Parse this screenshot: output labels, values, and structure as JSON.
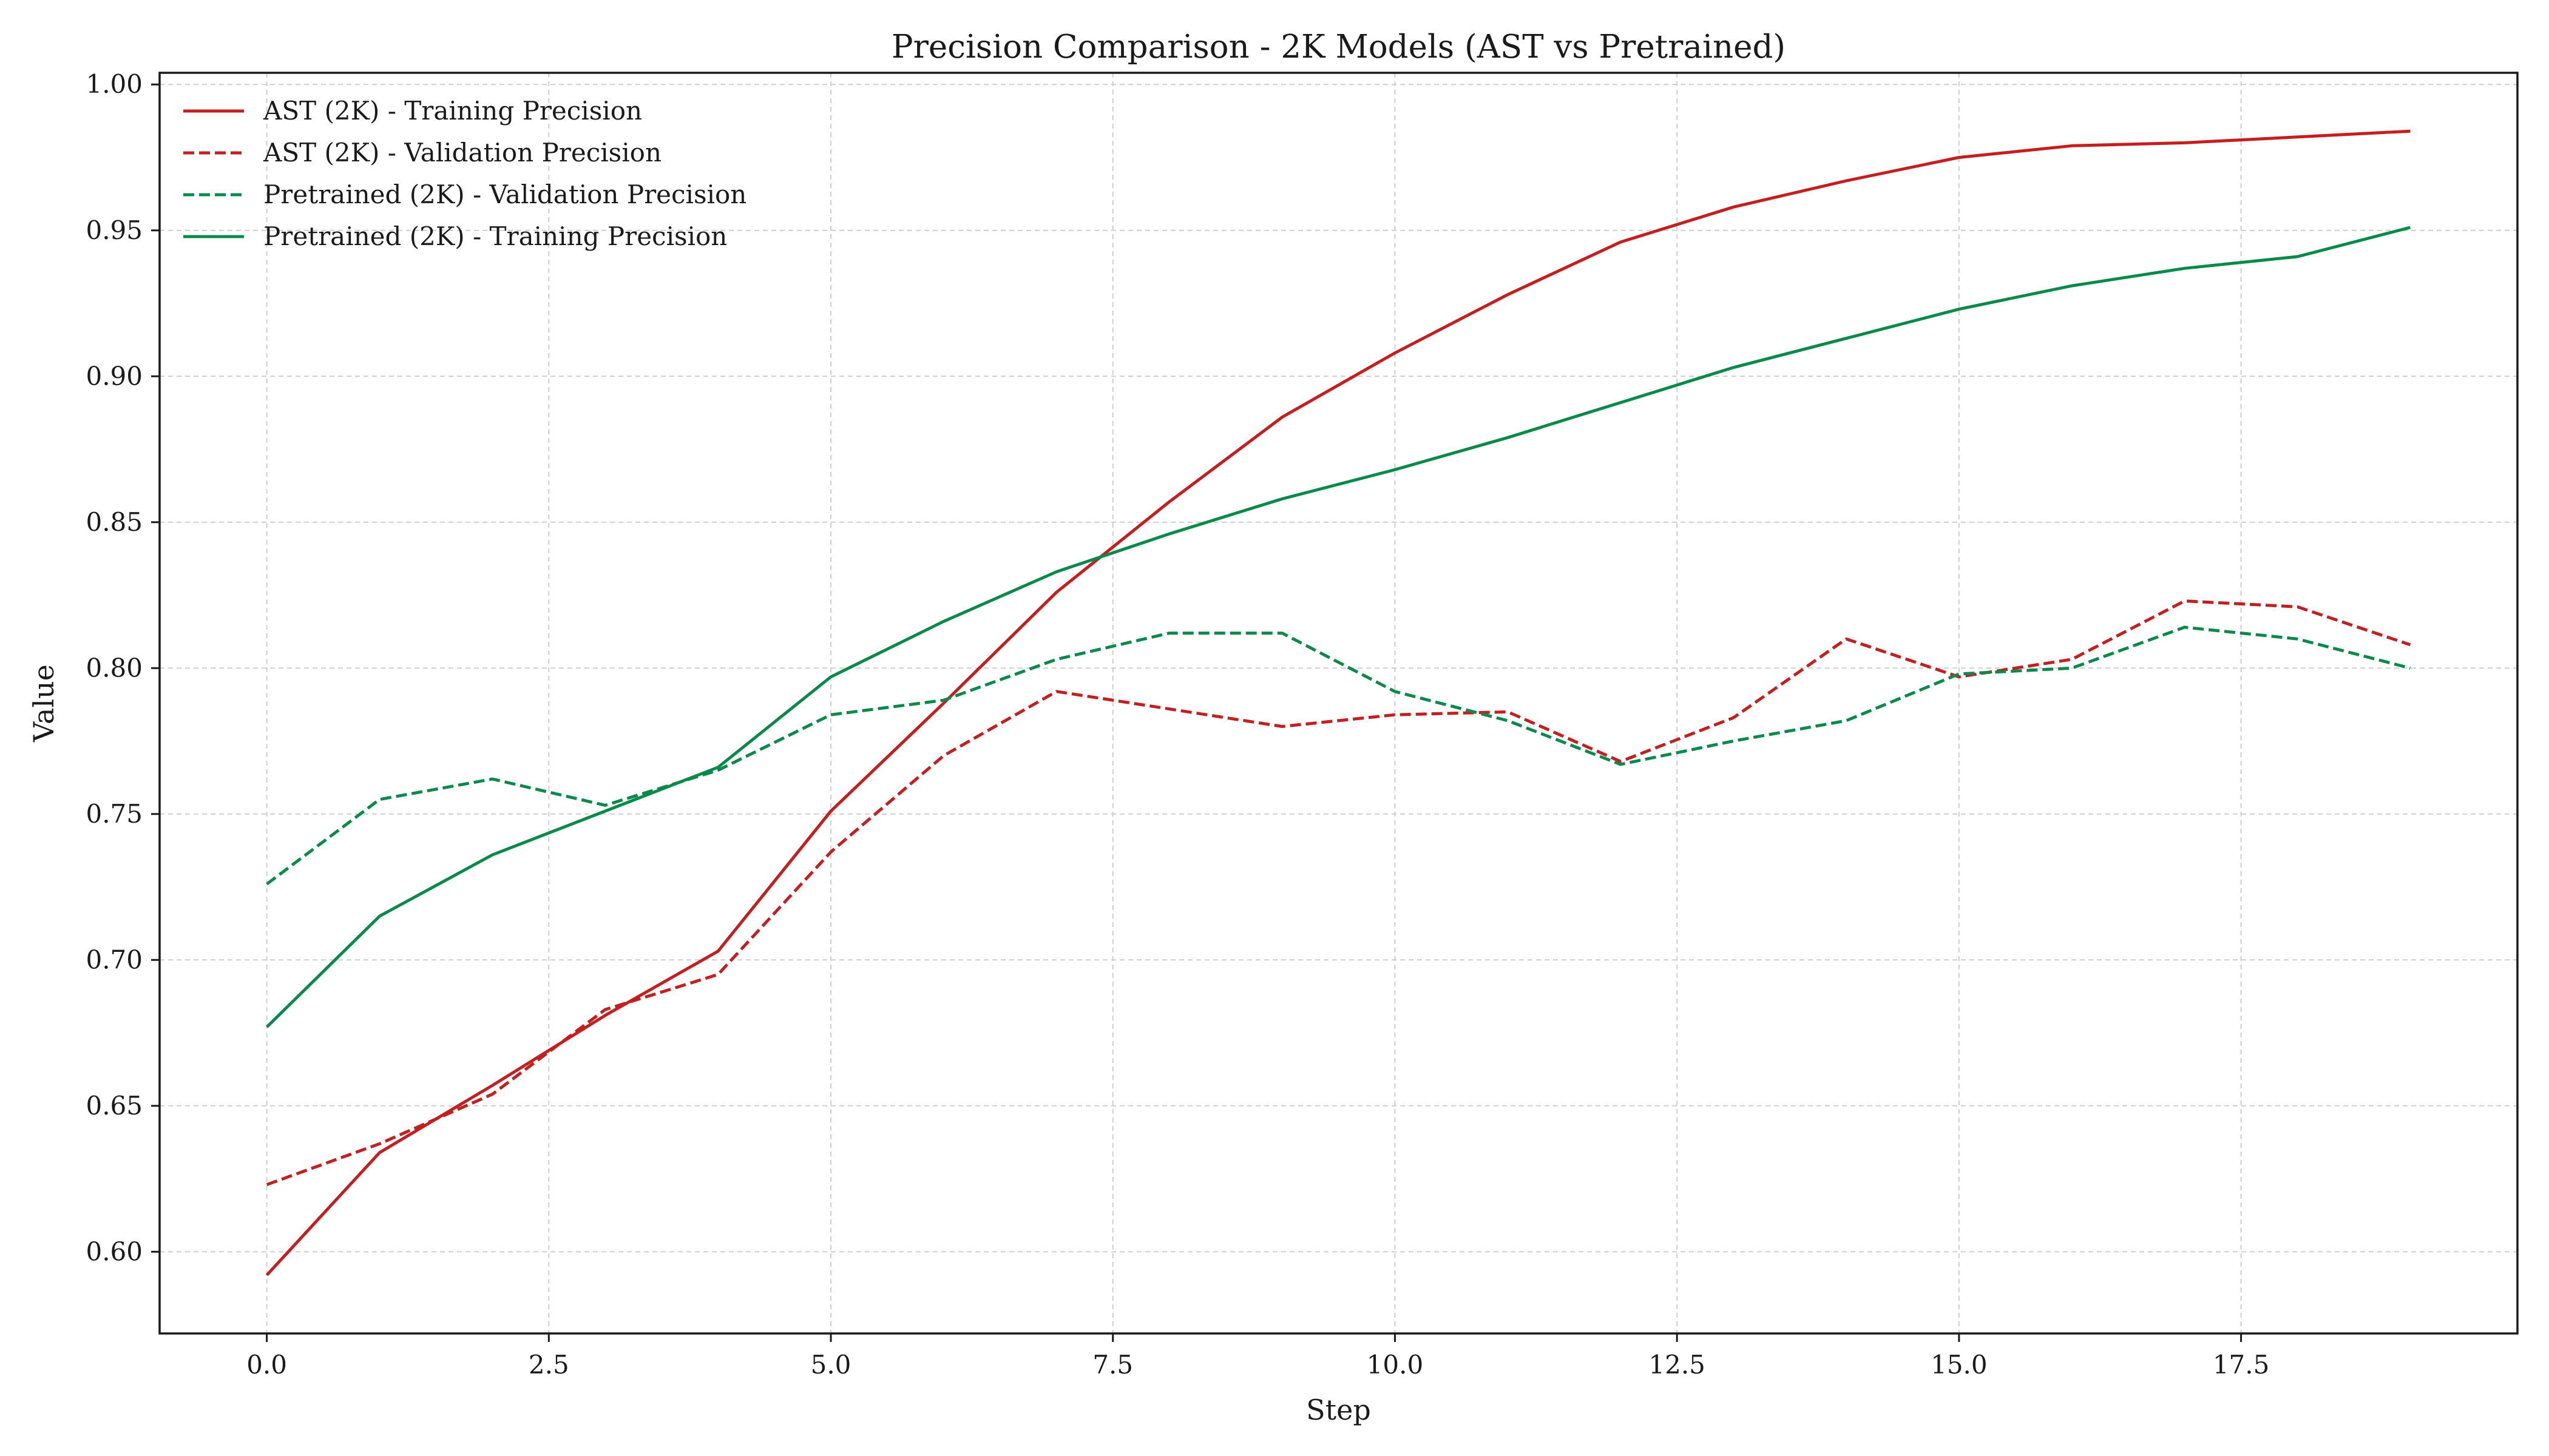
{
  "chart_data": {
    "type": "line",
    "title": "Precision Comparison - 2K Models (AST vs Pretrained)",
    "xlabel": "Step",
    "ylabel": "Value",
    "xlim": [
      -0.95,
      19.95
    ],
    "ylim": [
      0.572,
      1.004
    ],
    "xticks": [
      0.0,
      2.5,
      5.0,
      7.5,
      10.0,
      12.5,
      15.0,
      17.5
    ],
    "xtick_labels": [
      "0.0",
      "2.5",
      "5.0",
      "7.5",
      "10.0",
      "12.5",
      "15.0",
      "17.5"
    ],
    "yticks": [
      0.6,
      0.65,
      0.7,
      0.75,
      0.8,
      0.85,
      0.9,
      0.95,
      1.0
    ],
    "ytick_labels": [
      "0.60",
      "0.65",
      "0.70",
      "0.75",
      "0.80",
      "0.85",
      "0.90",
      "0.95",
      "1.00"
    ],
    "grid": true,
    "legend_position": "top-left",
    "x": [
      0,
      1,
      2,
      3,
      4,
      5,
      6,
      7,
      8,
      9,
      10,
      11,
      12,
      13,
      14,
      15,
      16,
      17,
      18,
      19
    ],
    "series": [
      {
        "name": "AST (2K) - Training Precision",
        "color": "#c41e1e",
        "dash": "solid",
        "values": [
          0.592,
          0.634,
          0.657,
          0.681,
          0.703,
          0.751,
          0.788,
          0.826,
          0.857,
          0.886,
          0.908,
          0.928,
          0.946,
          0.958,
          0.967,
          0.975,
          0.979,
          0.98,
          0.982,
          0.984
        ]
      },
      {
        "name": "AST (2K) - Validation Precision",
        "color": "#c41e1e",
        "dash": "dashed",
        "values": [
          0.623,
          0.637,
          0.654,
          0.683,
          0.695,
          0.737,
          0.77,
          0.792,
          0.786,
          0.78,
          0.784,
          0.785,
          0.768,
          0.783,
          0.81,
          0.797,
          0.803,
          0.823,
          0.821,
          0.808
        ]
      },
      {
        "name": "Pretrained (2K) - Validation Precision",
        "color": "#0a8a4a",
        "dash": "dashed",
        "values": [
          0.726,
          0.755,
          0.762,
          0.753,
          0.765,
          0.784,
          0.789,
          0.803,
          0.812,
          0.812,
          0.792,
          0.782,
          0.767,
          0.775,
          0.782,
          0.798,
          0.8,
          0.814,
          0.81,
          0.8
        ]
      },
      {
        "name": "Pretrained (2K) - Training Precision",
        "color": "#0a8a4a",
        "dash": "solid",
        "values": [
          0.677,
          0.715,
          0.736,
          0.751,
          0.766,
          0.797,
          0.816,
          0.833,
          0.846,
          0.858,
          0.868,
          0.879,
          0.891,
          0.903,
          0.913,
          0.923,
          0.931,
          0.937,
          0.941,
          0.951
        ]
      }
    ]
  }
}
